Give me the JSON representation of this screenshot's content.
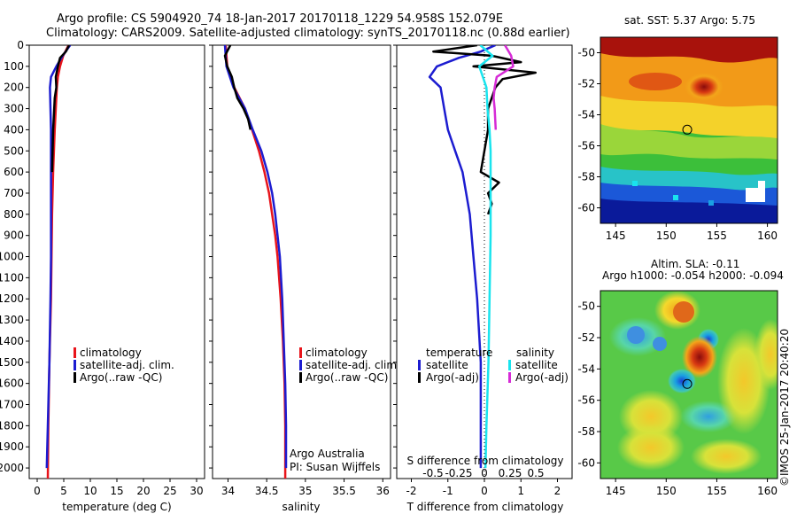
{
  "header": {
    "line1": "Argo profile: CS 5904920_74 18-Jan-2017 20170118_1229 54.958S 152.079E",
    "line2": "Climatology: CARS2009. Satellite-adjusted climatology: synTS_20170118.nc (0.88d earlier)"
  },
  "colors": {
    "climatology": "#e8141b",
    "satellite": "#1c1cd0",
    "argo": "#000000",
    "satellite_salinity": "#19e4ee",
    "argo_adj_salinity": "#d62bd6"
  },
  "chart_data": [
    {
      "type": "line",
      "panel": "temperature",
      "xlabel": "temperature (deg C)",
      "ylabel": "",
      "xlim": [
        -1.5,
        31.5
      ],
      "ylim": [
        2050,
        0
      ],
      "xticks": [
        0,
        5,
        10,
        15,
        20,
        25,
        30
      ],
      "yticks": [
        0,
        100,
        200,
        300,
        400,
        500,
        600,
        700,
        800,
        900,
        1000,
        1100,
        1200,
        1300,
        1400,
        1500,
        1600,
        1700,
        1800,
        1900,
        2000
      ],
      "legend": [
        "climatology",
        "satellite-adj. clim.",
        "Argo(..raw -QC)"
      ],
      "series": [
        {
          "name": "climatology",
          "color": "#e8141b",
          "depth": [
            0,
            50,
            100,
            150,
            200,
            300,
            400,
            600,
            800,
            1000,
            1200,
            1500,
            1800,
            2050
          ],
          "values": [
            5.9,
            4.9,
            4.3,
            3.9,
            3.7,
            3.5,
            3.3,
            3.0,
            2.8,
            2.7,
            2.6,
            2.3,
            2.1,
            2.0
          ]
        },
        {
          "name": "satellite-adj. clim.",
          "color": "#1c1cd0",
          "depth": [
            0,
            50,
            100,
            150,
            200,
            300,
            400,
            600,
            800,
            1000,
            1200,
            1500,
            1800,
            2000
          ],
          "values": [
            6.2,
            4.8,
            3.6,
            2.6,
            2.4,
            2.5,
            2.6,
            2.6,
            2.6,
            2.6,
            2.5,
            2.3,
            2.0,
            1.8
          ]
        },
        {
          "name": "Argo(..raw -QC)",
          "color": "#000000",
          "depth": [
            0,
            30,
            60,
            100,
            150,
            200,
            250,
            300,
            400,
            500,
            600
          ],
          "values": [
            6.0,
            5.4,
            4.3,
            3.9,
            3.5,
            3.6,
            3.3,
            3.2,
            3.0,
            2.9,
            2.8
          ]
        }
      ]
    },
    {
      "type": "line",
      "panel": "salinity",
      "xlabel": "salinity",
      "ylabel": "",
      "xlim": [
        33.8,
        36.1
      ],
      "ylim": [
        2050,
        0
      ],
      "xticks": [
        34,
        34.5,
        35,
        35.5,
        36
      ],
      "xtick_labels": [
        "34",
        "34.5",
        "35",
        "35.5",
        "36"
      ],
      "legend": [
        "climatology",
        "satellite-adj. clim.",
        "Argo(..raw -QC)"
      ],
      "annotations": [
        "Argo Australia",
        "PI: Susan Wijffels"
      ],
      "series": [
        {
          "name": "climatology",
          "color": "#e8141b",
          "depth": [
            0,
            100,
            200,
            300,
            400,
            500,
            600,
            700,
            800,
            900,
            1000,
            1200,
            1400,
            1600,
            1800,
            2050
          ],
          "values": [
            33.97,
            33.99,
            34.08,
            34.22,
            34.31,
            34.4,
            34.47,
            34.53,
            34.57,
            34.61,
            34.64,
            34.68,
            34.71,
            34.73,
            34.74,
            34.74
          ]
        },
        {
          "name": "satellite-adj. clim.",
          "color": "#1c1cd0",
          "depth": [
            0,
            100,
            200,
            300,
            400,
            500,
            600,
            700,
            800,
            900,
            1000,
            1200,
            1400,
            1600,
            1800,
            2000
          ],
          "values": [
            33.96,
            33.98,
            34.07,
            34.22,
            34.32,
            34.43,
            34.51,
            34.57,
            34.61,
            34.64,
            34.67,
            34.7,
            34.72,
            34.74,
            34.75,
            34.75
          ]
        },
        {
          "name": "Argo(..raw -QC)",
          "color": "#000000",
          "depth": [
            0,
            50,
            100,
            150,
            200,
            250,
            300,
            350,
            400
          ],
          "values": [
            34.03,
            33.96,
            33.99,
            34.05,
            34.08,
            34.12,
            34.2,
            34.26,
            34.29
          ]
        }
      ]
    },
    {
      "type": "line",
      "panel": "difference",
      "xlabel": "T difference from climatology",
      "xlabel_top": "S difference from climatology",
      "xlim": [
        -2.4,
        2.4
      ],
      "ylim": [
        2050,
        0
      ],
      "xticks": [
        -2,
        -1,
        0,
        1,
        2
      ],
      "xtick_labels": [
        "-2",
        "-1",
        "0",
        "1",
        "2"
      ],
      "sticks": [
        -0.5,
        -0.25,
        0,
        0.25,
        0.5
      ],
      "stick_labels": [
        "-0.5",
        "-0.25",
        "0",
        "0.25",
        "0.5"
      ],
      "legend_temperature": {
        "heading": "temperature",
        "items": [
          "satellite",
          "Argo(-adj)"
        ]
      },
      "legend_salinity": {
        "heading": "salinity",
        "items": [
          "satellite",
          "Argo(-adj)"
        ]
      },
      "series": [
        {
          "name": "temperature satellite",
          "color": "#1c1cd0",
          "depth": [
            0,
            30,
            60,
            100,
            150,
            200,
            300,
            400,
            500,
            600,
            800,
            1000,
            1200,
            1500,
            1800,
            2000
          ],
          "values": [
            0.3,
            -0.1,
            -0.7,
            -1.3,
            -1.5,
            -1.2,
            -1.1,
            -1.0,
            -0.8,
            -0.6,
            -0.4,
            -0.3,
            -0.2,
            -0.1,
            -0.1,
            -0.1
          ]
        },
        {
          "name": "temperature Argo(-adj)",
          "color": "#000000",
          "depth": [
            0,
            30,
            50,
            80,
            100,
            130,
            160,
            200,
            300,
            400,
            500,
            600,
            650,
            700,
            750,
            800
          ],
          "values": [
            -0.2,
            -1.4,
            0.2,
            1.0,
            -0.3,
            1.4,
            0.5,
            0.3,
            0.1,
            0.1,
            0.0,
            -0.1,
            0.4,
            0.1,
            0.2,
            0.1
          ]
        },
        {
          "name": "salinity satellite",
          "color": "#19e4ee",
          "depth": [
            0,
            50,
            100,
            200,
            300,
            400,
            500,
            700,
            900,
            1200,
            1500,
            1800,
            2000
          ],
          "values": [
            -0.04,
            0.08,
            -0.05,
            0.02,
            0.03,
            0.05,
            0.06,
            0.06,
            0.06,
            0.05,
            0.04,
            0.02,
            0.01
          ]
        },
        {
          "name": "salinity Argo(-adj)",
          "color": "#d62bd6",
          "depth": [
            0,
            50,
            100,
            150,
            200,
            250,
            300,
            400
          ],
          "values": [
            0.2,
            0.26,
            0.28,
            0.12,
            0.1,
            0.09,
            0.1,
            0.11
          ]
        }
      ]
    },
    {
      "type": "heatmap",
      "panel": "sst-map",
      "title": "sat. SST: 5.37 Argo: 5.75",
      "xlim": [
        143.5,
        161
      ],
      "ylim": [
        -61,
        -49
      ],
      "xticks": [
        145,
        150,
        155,
        160
      ],
      "yticks": [
        -50,
        -52,
        -54,
        -56,
        -58,
        -60
      ],
      "ytick_labels": [
        "-50",
        "-52",
        "-54",
        "-56",
        "-58",
        "-60"
      ],
      "marker": {
        "lon": 152.08,
        "lat": -54.96
      }
    },
    {
      "type": "heatmap",
      "panel": "sla-map",
      "title": "Altim. SLA: -0.11",
      "subtitle": "Argo h1000: -0.054 h2000: -0.094",
      "xlim": [
        143.5,
        161
      ],
      "ylim": [
        -61,
        -49
      ],
      "xticks": [
        145,
        150,
        155,
        160
      ],
      "yticks": [
        -50,
        -52,
        -54,
        -56,
        -58,
        -60
      ],
      "ytick_labels": [
        "-50",
        "-52",
        "-54",
        "-56",
        "-58",
        "-60"
      ],
      "marker": {
        "lon": 152.08,
        "lat": -54.96
      }
    }
  ],
  "credit": "©IMOS 25-Jan-2017 20:40:20"
}
